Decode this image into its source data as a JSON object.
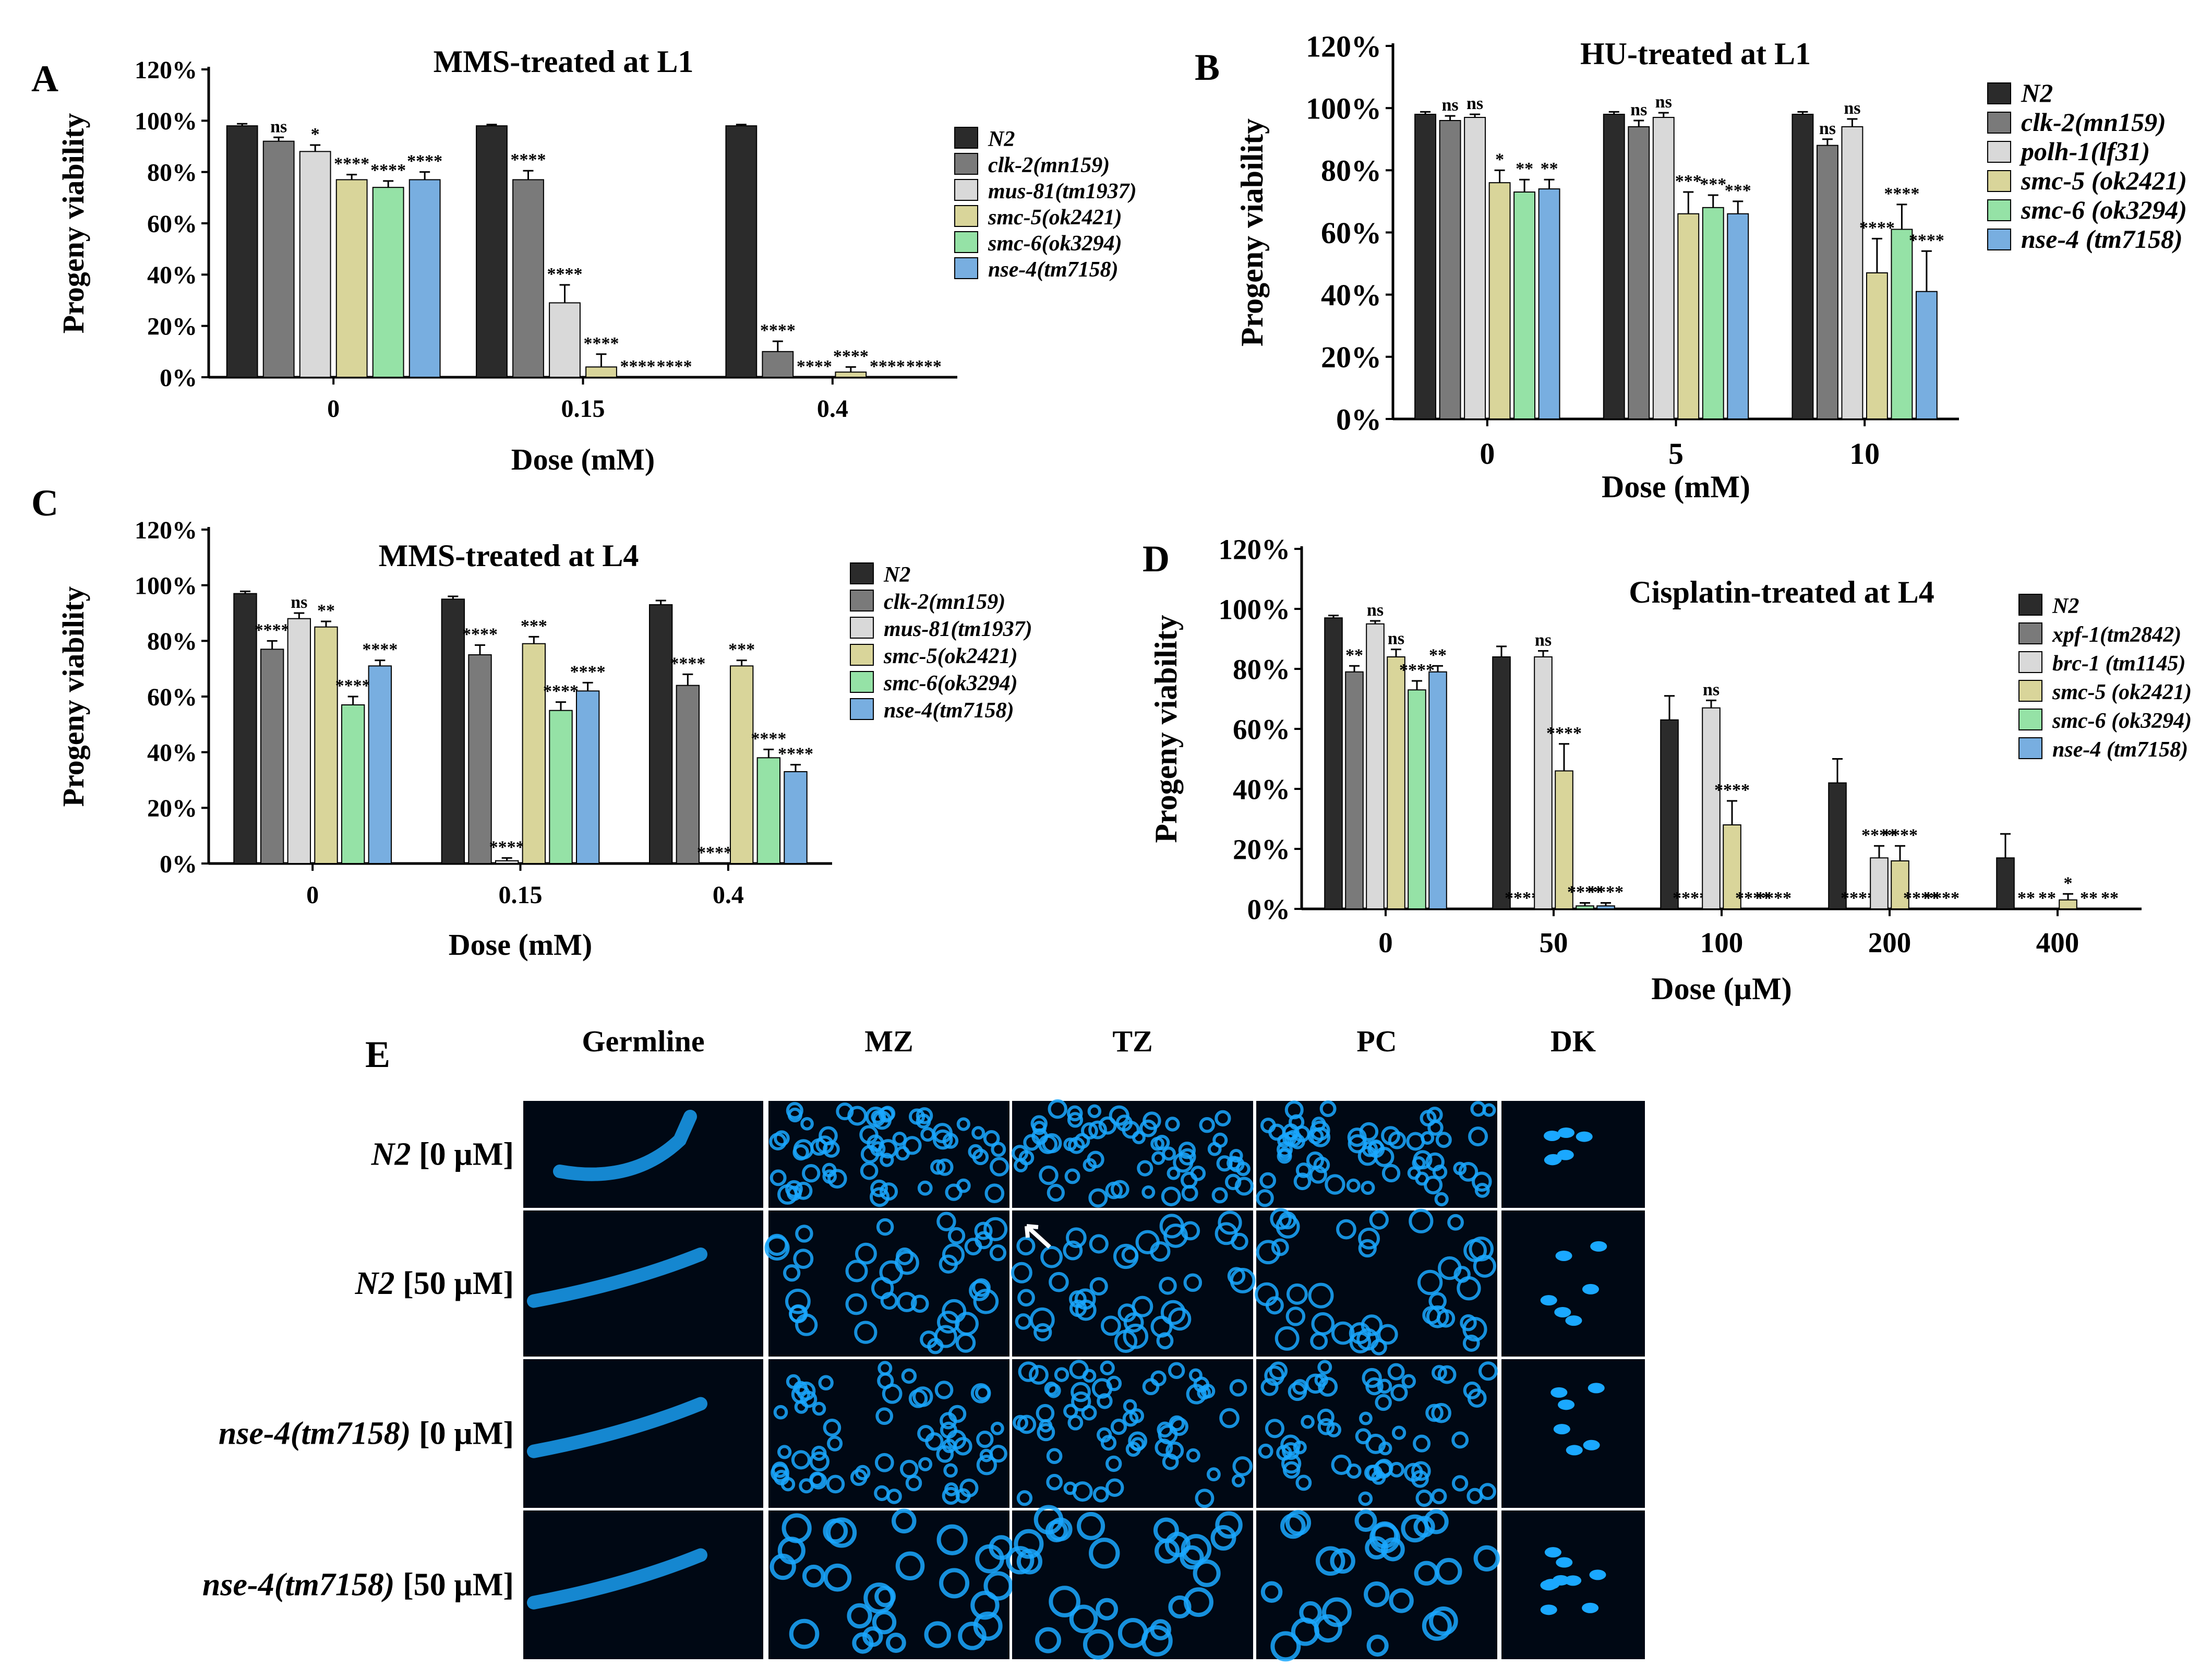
{
  "colors": {
    "N2": "#2b2b2b",
    "dark_gray": "#7a7a7a",
    "light_gray": "#d9d9d9",
    "smc5": "#d9d59a",
    "smc6": "#95e2a6",
    "nse4": "#78aee0",
    "cell_bg": "#000814",
    "nuclei": "#1aa8ff",
    "text": "#000000"
  },
  "chart_data": [
    {
      "panel": "A",
      "type": "bar",
      "title": "MMS-treated at L1",
      "xlabel": "Dose (mM)",
      "ylabel": "Progeny viability",
      "ylim": [
        0,
        120
      ],
      "yticks": [
        "0%",
        "20%",
        "40%",
        "60%",
        "80%",
        "100%",
        "120%"
      ],
      "categories": [
        "0",
        "0.15",
        "0.4"
      ],
      "legend_position": "right",
      "series": [
        {
          "name": "N2",
          "color_key": "N2",
          "values": [
            98,
            98,
            98
          ],
          "errors": [
            0.8,
            0.5,
            0.5
          ],
          "sig": [
            "",
            "",
            ""
          ]
        },
        {
          "name": "clk-2(mn159)",
          "color_key": "dark_gray",
          "values": [
            92,
            77,
            10
          ],
          "errors": [
            1.5,
            3.5,
            4
          ],
          "sig": [
            "ns",
            "****",
            "****"
          ]
        },
        {
          "name": "mus-81(tm1937)",
          "color_key": "light_gray",
          "values": [
            88,
            29,
            0
          ],
          "errors": [
            2.5,
            7,
            0
          ],
          "sig": [
            "*",
            "****",
            "****"
          ]
        },
        {
          "name": "smc-5(ok2421)",
          "color_key": "smc5",
          "values": [
            77,
            4,
            2
          ],
          "errors": [
            2,
            5,
            2
          ],
          "sig": [
            "****",
            "****",
            "****"
          ]
        },
        {
          "name": "smc-6(ok3294)",
          "color_key": "smc6",
          "values": [
            74,
            0,
            0
          ],
          "errors": [
            2.5,
            0,
            0
          ],
          "sig": [
            "****",
            "****",
            "****"
          ]
        },
        {
          "name": "nse-4(tm7158)",
          "color_key": "nse4",
          "values": [
            77,
            0,
            0
          ],
          "errors": [
            3,
            0,
            0
          ],
          "sig": [
            "****",
            "****",
            "****"
          ]
        }
      ]
    },
    {
      "panel": "B",
      "type": "bar",
      "title": "HU-treated at L1",
      "xlabel": "Dose (mM)",
      "ylabel": "Progeny viability",
      "ylim": [
        0,
        120
      ],
      "yticks": [
        "0%",
        "20%",
        "40%",
        "60%",
        "80%",
        "100%",
        "120%"
      ],
      "categories": [
        "0",
        "5",
        "10"
      ],
      "legend_position": "right",
      "series": [
        {
          "name": "N2",
          "color_key": "N2",
          "values": [
            98,
            98,
            98
          ],
          "errors": [
            0.8,
            0.8,
            0.8
          ],
          "sig": [
            "",
            "",
            ""
          ]
        },
        {
          "name": "clk-2(mn159)",
          "color_key": "dark_gray",
          "values": [
            96,
            94,
            88
          ],
          "errors": [
            1.5,
            2,
            2
          ],
          "sig": [
            "ns",
            "ns",
            "ns"
          ]
        },
        {
          "name": "polh-1(lf31)",
          "color_key": "light_gray",
          "values": [
            97,
            97,
            94
          ],
          "errors": [
            1,
            1.5,
            2.5
          ],
          "sig": [
            "ns",
            "ns",
            "ns"
          ]
        },
        {
          "name": "smc-5 (ok2421)",
          "color_key": "smc5",
          "values": [
            76,
            66,
            47
          ],
          "errors": [
            4,
            7,
            11
          ],
          "sig": [
            "*",
            "***",
            "****"
          ]
        },
        {
          "name": "smc-6 (ok3294)",
          "color_key": "smc6",
          "values": [
            73,
            68,
            61
          ],
          "errors": [
            4,
            4,
            8
          ],
          "sig": [
            "**",
            "***",
            "****"
          ]
        },
        {
          "name": "nse-4 (tm7158)",
          "color_key": "nse4",
          "values": [
            74,
            66,
            41
          ],
          "errors": [
            3,
            4,
            13
          ],
          "sig": [
            "**",
            "***",
            "****"
          ]
        }
      ]
    },
    {
      "panel": "C",
      "type": "bar",
      "title": "MMS-treated at L4",
      "xlabel": "Dose (mM)",
      "ylabel": "Progeny viability",
      "ylim": [
        0,
        120
      ],
      "yticks": [
        "0%",
        "20%",
        "40%",
        "60%",
        "80%",
        "100%",
        "120%"
      ],
      "categories": [
        "0",
        "0.15",
        "0.4"
      ],
      "legend_position": "right",
      "series": [
        {
          "name": "N2",
          "color_key": "N2",
          "values": [
            97,
            95,
            93
          ],
          "errors": [
            0.8,
            1,
            1.5
          ],
          "sig": [
            "",
            "",
            ""
          ]
        },
        {
          "name": "clk-2(mn159)",
          "color_key": "dark_gray",
          "values": [
            77,
            75,
            64
          ],
          "errors": [
            3,
            3.5,
            4
          ],
          "sig": [
            "****",
            "****",
            "****"
          ]
        },
        {
          "name": "mus-81(tm1937)",
          "color_key": "light_gray",
          "values": [
            88,
            1,
            0
          ],
          "errors": [
            2,
            1,
            0
          ],
          "sig": [
            "ns",
            "****",
            "****"
          ]
        },
        {
          "name": "smc-5(ok2421)",
          "color_key": "smc5",
          "values": [
            85,
            79,
            71
          ],
          "errors": [
            2,
            2.5,
            2
          ],
          "sig": [
            "**",
            "***",
            "***"
          ]
        },
        {
          "name": "smc-6(ok3294)",
          "color_key": "smc6",
          "values": [
            57,
            55,
            38
          ],
          "errors": [
            3,
            3,
            3
          ],
          "sig": [
            "****",
            "****",
            "****"
          ]
        },
        {
          "name": "nse-4(tm7158)",
          "color_key": "nse4",
          "values": [
            71,
            62,
            33
          ],
          "errors": [
            2,
            3,
            2.5
          ],
          "sig": [
            "****",
            "****",
            "****"
          ]
        }
      ]
    },
    {
      "panel": "D",
      "type": "bar",
      "title": "Cisplatin-treated at L4",
      "xlabel": "Dose (µM)",
      "ylabel": "Progeny viability",
      "ylim": [
        0,
        120
      ],
      "yticks": [
        "0%",
        "20%",
        "40%",
        "60%",
        "80%",
        "100%",
        "120%"
      ],
      "categories": [
        "0",
        "50",
        "100",
        "200",
        "400"
      ],
      "legend_position": "right",
      "series": [
        {
          "name": "N2",
          "color_key": "N2",
          "values": [
            97,
            84,
            63,
            42,
            17
          ],
          "errors": [
            0.8,
            3.5,
            8,
            8,
            8
          ],
          "sig": [
            "",
            "",
            "",
            "",
            ""
          ]
        },
        {
          "name": "xpf-1(tm2842)",
          "color_key": "dark_gray",
          "values": [
            79,
            0,
            0,
            0,
            0
          ],
          "errors": [
            2,
            0,
            0,
            0,
            0
          ],
          "sig": [
            "**",
            "****",
            "****",
            "****",
            "**"
          ]
        },
        {
          "name": "brc-1 (tm1145)",
          "color_key": "light_gray",
          "values": [
            95,
            84,
            67,
            17,
            0
          ],
          "errors": [
            1,
            2,
            2.5,
            4,
            0
          ],
          "sig": [
            "ns",
            "ns",
            "ns",
            "****",
            "**"
          ]
        },
        {
          "name": "smc-5 (ok2421)",
          "color_key": "smc5",
          "values": [
            84,
            46,
            28,
            16,
            3
          ],
          "errors": [
            2.5,
            9,
            8,
            5,
            2
          ],
          "sig": [
            "ns",
            "****",
            "****",
            "****",
            "*"
          ]
        },
        {
          "name": "smc-6 (ok3294)",
          "color_key": "smc6",
          "values": [
            73,
            1,
            0,
            0,
            0
          ],
          "errors": [
            3,
            1,
            0,
            0,
            0
          ],
          "sig": [
            "****",
            "****",
            "****",
            "****",
            "**"
          ]
        },
        {
          "name": "nse-4 (tm7158)",
          "color_key": "nse4",
          "values": [
            79,
            1,
            0,
            0,
            0
          ],
          "errors": [
            2,
            1,
            0,
            0,
            0
          ],
          "sig": [
            "**",
            "****",
            "****",
            "****",
            "**"
          ]
        }
      ]
    }
  ],
  "panel_e": {
    "label": "E",
    "columns": [
      "Germline",
      "MZ",
      "TZ",
      "PC",
      "DK"
    ],
    "rows": [
      {
        "genotype": "N2",
        "dose": "[0 µM]"
      },
      {
        "genotype": "N2",
        "dose": "[50 µM]"
      },
      {
        "genotype": "nse-4(tm7158)",
        "dose": "[0 µM]"
      },
      {
        "genotype": "nse-4(tm7158)",
        "dose": "[50 µM]"
      }
    ]
  }
}
